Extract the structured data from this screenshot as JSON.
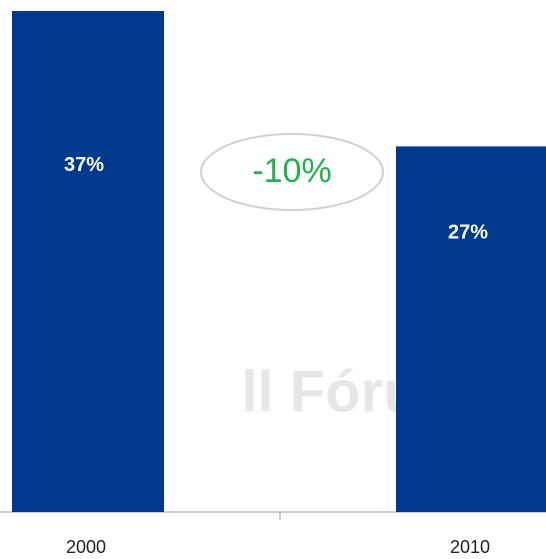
{
  "chart_data": {
    "type": "bar",
    "categories": [
      "2000",
      "2010"
    ],
    "values": [
      37,
      27
    ],
    "value_labels": [
      "37%",
      "27%"
    ],
    "color": "#003a8c",
    "ylim": [
      0,
      37
    ],
    "annotation": "-10%",
    "watermark": "ll Fóru"
  }
}
